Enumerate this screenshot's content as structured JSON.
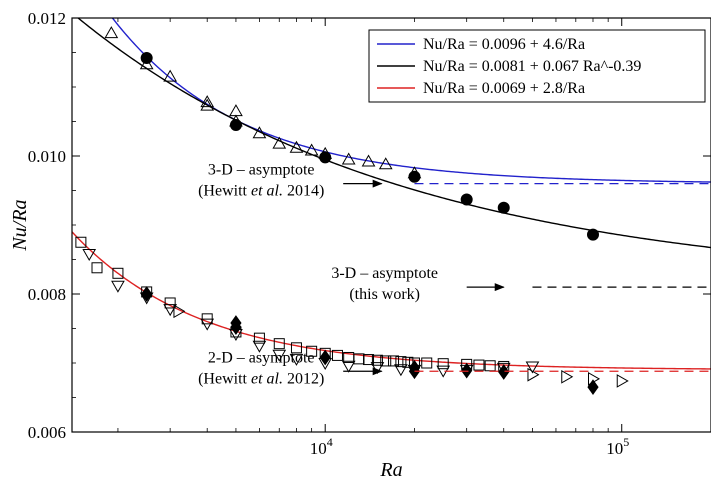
{
  "chart_data": {
    "type": "scatter",
    "xlabel": "Ra",
    "ylabel": "Nu/Ra",
    "xscale": "log",
    "xlim": [
      1400,
      200000
    ],
    "ylim": [
      0.006,
      0.012
    ],
    "x_ticks": [
      {
        "value": 10000,
        "base": "10",
        "exp": "4"
      },
      {
        "value": 100000,
        "base": "10",
        "exp": "5"
      }
    ],
    "y_ticks": [
      {
        "value": 0.006,
        "label": "0.006"
      },
      {
        "value": 0.008,
        "label": "0.008"
      },
      {
        "value": 0.01,
        "label": "0.010"
      },
      {
        "value": 0.012,
        "label": "0.012"
      }
    ],
    "legend_position": "top-right",
    "fits": [
      {
        "name": "Nu/Ra = 0.0096 + 4.6/Ra",
        "color": "#2222cc",
        "a": 0.0096,
        "b": 4.6,
        "form": "a+b/x"
      },
      {
        "name": "Nu/Ra = 0.0081 + 0.067 Ra^-0.39",
        "color": "#000000",
        "a": 0.0081,
        "b": 0.067,
        "p": -0.39,
        "form": "a+b*x^p"
      },
      {
        "name": "Nu/Ra = 0.0069 + 2.8/Ra",
        "color": "#dd2222",
        "a": 0.0069,
        "b": 2.8,
        "form": "a+b/x"
      }
    ],
    "asymptotes": [
      {
        "y": 0.0096,
        "x_from": 20000,
        "color": "#2222cc",
        "dash": "9,6",
        "label_lines": [
          "3-D – asymptote",
          "(Hewitt et al. 2014)"
        ],
        "arrow_x": [
          11500,
          15500
        ]
      },
      {
        "y": 0.0081,
        "x_from": 50000,
        "color": "#000000",
        "dash": "9,6",
        "label_lines": [
          "3-D – asymptote",
          "(this work)"
        ],
        "arrow_x": [
          30000,
          40000
        ]
      },
      {
        "y": 0.00688,
        "x_from": 20000,
        "color": "#dd2222",
        "dash": "9,6",
        "label_lines": [
          "2-D – asymptote",
          "(Hewitt et al. 2012)"
        ],
        "arrow_x": [
          11500,
          15500
        ]
      }
    ],
    "series": [
      {
        "marker": "triangle-up",
        "fill": "none",
        "x": [
          1900,
          2500,
          3000,
          4000,
          4000,
          5000,
          5000,
          6000,
          7000,
          8000,
          9000,
          10000,
          12000,
          14000,
          16000,
          20000
        ],
        "y": [
          0.01178,
          0.01133,
          0.01115,
          0.01078,
          0.01073,
          0.01065,
          0.0105,
          0.01033,
          0.01018,
          0.01012,
          0.01008,
          0.01003,
          0.00995,
          0.00992,
          0.00988,
          0.00975
        ]
      },
      {
        "marker": "circle",
        "fill": "#000",
        "x": [
          2500,
          5000,
          10000,
          20000,
          30000,
          40000,
          80000
        ],
        "y": [
          0.01142,
          0.01045,
          0.00998,
          0.0097,
          0.00937,
          0.00925,
          0.00886
        ]
      },
      {
        "marker": "square",
        "fill": "none",
        "x": [
          1500,
          1700,
          2000,
          2500,
          3000,
          4000,
          5000,
          6000,
          7000,
          8000,
          9000,
          10000,
          11000,
          12000,
          13000,
          14000,
          15000,
          16000,
          17000,
          18000,
          19000,
          20000,
          22000,
          25000,
          30000,
          33000,
          36000,
          40000
        ],
        "y": [
          0.00875,
          0.00838,
          0.0083,
          0.00803,
          0.00787,
          0.00764,
          0.00745,
          0.00736,
          0.00728,
          0.00722,
          0.00717,
          0.00714,
          0.00711,
          0.00708,
          0.00706,
          0.00705,
          0.00704,
          0.00703,
          0.00703,
          0.00702,
          0.00701,
          0.007,
          0.007,
          0.00699,
          0.00698,
          0.00697,
          0.00696,
          0.00695
        ]
      },
      {
        "marker": "triangle-down",
        "fill": "none",
        "x": [
          1600,
          2000,
          2500,
          3000,
          4000,
          5000,
          6000,
          7000,
          8000,
          10000,
          12000,
          15000,
          18000,
          20000,
          25000,
          30000,
          40000,
          50000
        ],
        "y": [
          0.00858,
          0.00812,
          0.00795,
          0.00778,
          0.00757,
          0.00742,
          0.00725,
          0.00712,
          0.00706,
          0.007,
          0.00696,
          0.00694,
          0.00691,
          0.0069,
          0.00689,
          0.0069,
          0.00693,
          0.00695
        ]
      },
      {
        "marker": "triangle-right",
        "fill": "none",
        "x": [
          3200,
          50000,
          65000,
          80000,
          100000
        ],
        "y": [
          0.00775,
          0.00683,
          0.0068,
          0.00677,
          0.00674
        ]
      },
      {
        "marker": "diamond",
        "fill": "#000",
        "x": [
          2500,
          5000,
          5000,
          10000,
          20000,
          20000,
          30000,
          40000,
          80000
        ],
        "y": [
          0.008,
          0.00758,
          0.00752,
          0.00708,
          0.00693,
          0.00688,
          0.00689,
          0.00687,
          0.00665
        ]
      }
    ]
  }
}
